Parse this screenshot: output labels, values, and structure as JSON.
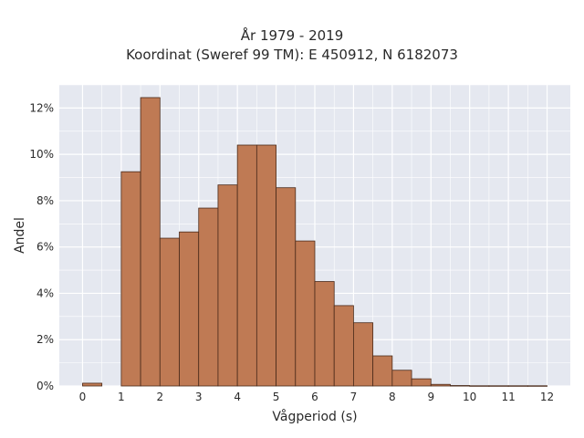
{
  "chart_data": {
    "type": "bar",
    "title_lines": [
      "År 1979 - 2019",
      "Koordinat (Sweref 99 TM): E 450912, N 6182073"
    ],
    "xlabel": "Vågperiod (s)",
    "ylabel": "Andel",
    "xlim": [
      -0.6,
      12.6
    ],
    "ylim": [
      0,
      13
    ],
    "x_ticks": [
      "0",
      "1",
      "2",
      "3",
      "4",
      "5",
      "6",
      "7",
      "8",
      "9",
      "10",
      "11",
      "12"
    ],
    "y_ticks": [
      "0%",
      "2%",
      "4%",
      "6%",
      "8%",
      "10%",
      "12%"
    ],
    "bin_width": 0.5,
    "bins": [
      {
        "start": 0.0,
        "value": 0.12
      },
      {
        "start": 1.0,
        "value": 9.25
      },
      {
        "start": 1.5,
        "value": 12.45
      },
      {
        "start": 2.0,
        "value": 6.38
      },
      {
        "start": 2.5,
        "value": 6.65
      },
      {
        "start": 3.0,
        "value": 7.68
      },
      {
        "start": 3.5,
        "value": 8.68
      },
      {
        "start": 4.0,
        "value": 10.4
      },
      {
        "start": 4.5,
        "value": 10.4
      },
      {
        "start": 5.0,
        "value": 8.56
      },
      {
        "start": 5.5,
        "value": 6.26
      },
      {
        "start": 6.0,
        "value": 4.51
      },
      {
        "start": 6.5,
        "value": 3.47
      },
      {
        "start": 7.0,
        "value": 2.73
      },
      {
        "start": 7.5,
        "value": 1.3
      },
      {
        "start": 8.0,
        "value": 0.68
      },
      {
        "start": 8.5,
        "value": 0.31
      },
      {
        "start": 9.0,
        "value": 0.07
      },
      {
        "start": 9.5,
        "value": 0.02
      },
      {
        "start": 10.0,
        "value": 0.01
      },
      {
        "start": 10.5,
        "value": 0.01
      },
      {
        "start": 11.0,
        "value": 0.01
      },
      {
        "start": 11.5,
        "value": 0.01
      }
    ],
    "grid": true,
    "colors": {
      "bar_fill": "#bf7a54",
      "bar_stroke": "#4a2a1a",
      "plot_bg": "#e5e8f0",
      "grid": "#ffffff"
    }
  }
}
